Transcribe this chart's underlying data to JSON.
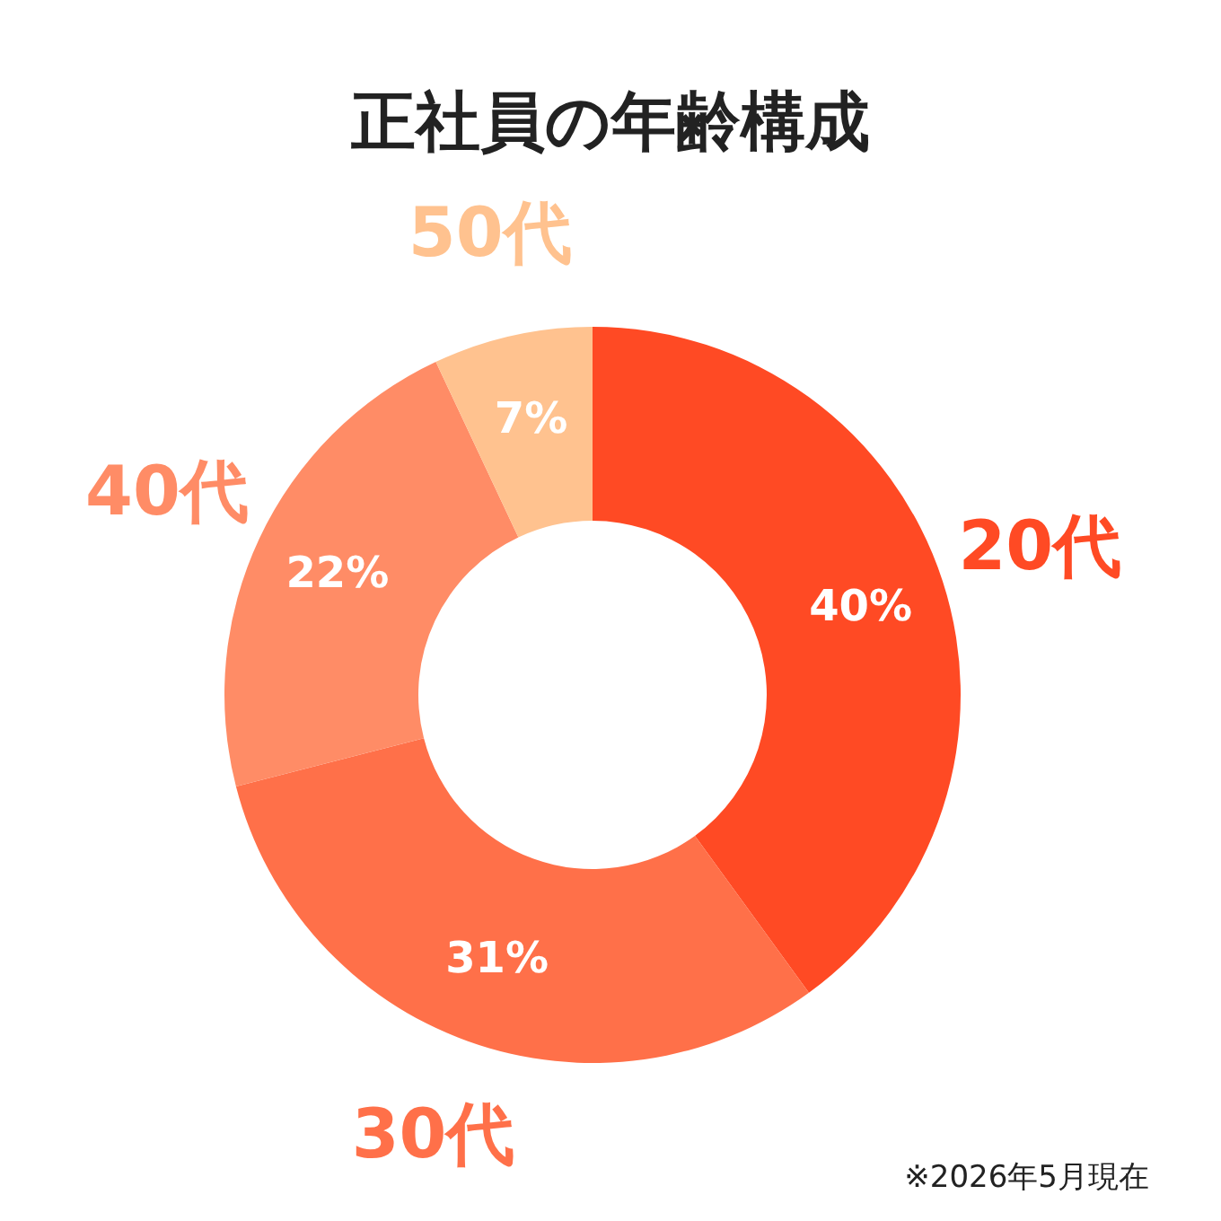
{
  "chart_data": {
    "type": "donut",
    "title": "正社員の年齢構成",
    "categories": [
      "20代",
      "30代",
      "40代",
      "50代"
    ],
    "values": [
      40,
      31,
      22,
      7
    ],
    "value_labels": [
      "40%",
      "31%",
      "22%",
      "7%"
    ],
    "colors": [
      "#ff4a24",
      "#ff7049",
      "#ff8c66",
      "#ffc28f"
    ],
    "annotations": [
      "※2026年5月現在"
    ]
  }
}
